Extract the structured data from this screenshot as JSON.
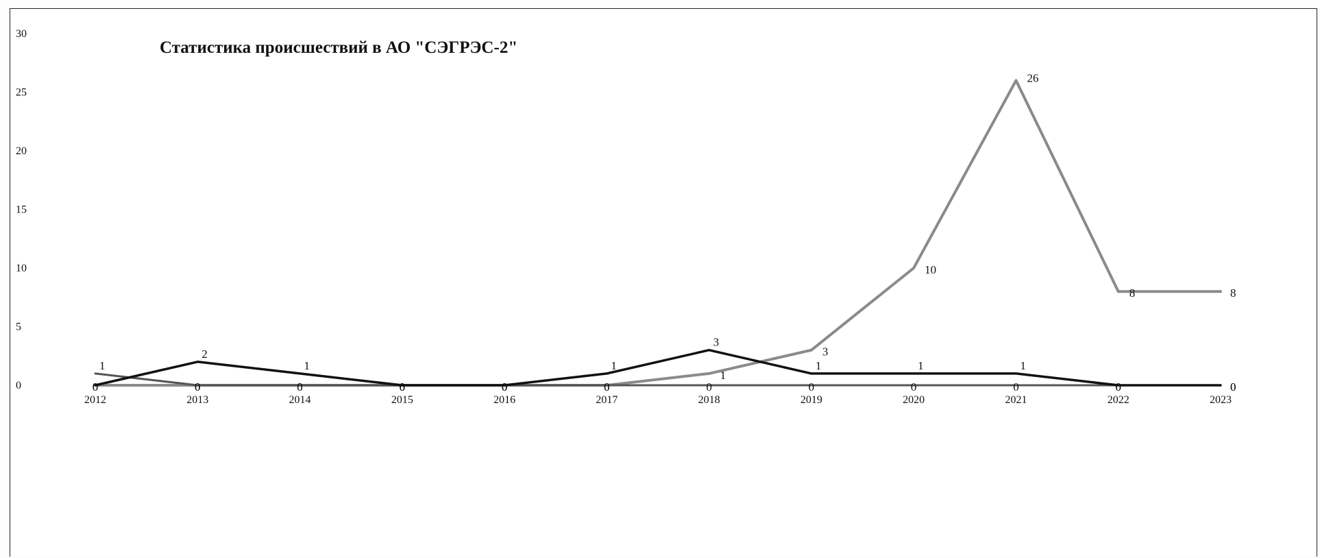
{
  "chart_data": {
    "type": "line",
    "title": "Статистика происшествий в АО \"СЭГРЭС-2\"",
    "xlabel": "",
    "ylabel": "",
    "categories": [
      "2012",
      "2013",
      "2014",
      "2015",
      "2016",
      "2017",
      "2018",
      "2019",
      "2020",
      "2021",
      "2022",
      "2023"
    ],
    "ylim": [
      0,
      30
    ],
    "yticks": [
      0,
      5,
      10,
      15,
      20,
      25,
      30
    ],
    "grid": false,
    "legend": "none",
    "series": [
      {
        "values": [
          0,
          0,
          0,
          0,
          0,
          0,
          1,
          3,
          10,
          26,
          8,
          8
        ],
        "labels": [
          "0",
          "0",
          "0",
          "0",
          "0",
          "0",
          "1",
          "3",
          "10",
          "26",
          "8",
          "8"
        ],
        "color": "#8a8a8a"
      },
      {
        "values": [
          1,
          0,
          0,
          0,
          0,
          0,
          0,
          0,
          0,
          0,
          0,
          0
        ],
        "labels": [
          "1",
          "0",
          "0",
          "0",
          "0",
          "0",
          "0",
          "0",
          "0",
          "0",
          "0",
          "0"
        ],
        "color": "#555555"
      },
      {
        "values": [
          0,
          2,
          1,
          0,
          0,
          1,
          3,
          1,
          1,
          1,
          0,
          0
        ],
        "labels": [
          "0",
          "2",
          "1",
          "0",
          "0",
          "1",
          "3",
          "1",
          "1",
          "1",
          "0",
          "0"
        ],
        "color": "#111111"
      }
    ]
  }
}
